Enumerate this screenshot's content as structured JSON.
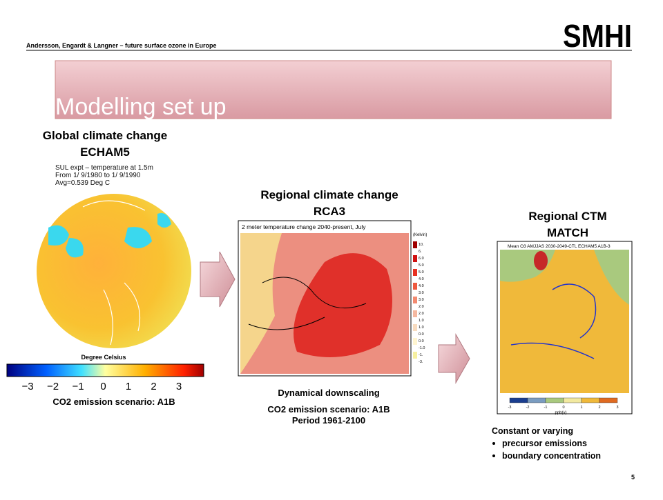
{
  "header": {
    "credit": "Andersson, Engardt & Langner – future surface ozone in Europe",
    "logo": "SMHI",
    "page": "5"
  },
  "title": "Modelling set up",
  "panels": [
    {
      "heading": [
        "Global climate change",
        "ECHAM5"
      ],
      "figure": {
        "caption": [
          "SUL expt – temperature at 1.5m",
          "From 1/ 9/1980 to 1/ 9/1990",
          "Avg=0.539 Deg C"
        ],
        "unit": "Degree Celsius",
        "scale": [
          "−3",
          "−2",
          "−1",
          "0",
          "1",
          "2",
          "3"
        ]
      },
      "notes": [
        "CO2 emission scenario: A1B"
      ]
    },
    {
      "heading": [
        "Regional climate change",
        "RCA3"
      ],
      "figure": {
        "caption": [
          "2 meter temperature change 2040-present, July"
        ],
        "unit": "(Kelvin)",
        "scale": [
          "10.",
          "6.",
          "6.0",
          "5.0",
          "5.0",
          "4.0",
          "4.0",
          "3.0",
          "3.0",
          "2.0",
          "2.0",
          "1.0",
          "1.0",
          "0.0",
          "0.0",
          "-1.0",
          "-1.",
          "-3."
        ]
      },
      "notes": [
        "Dynamical downscaling",
        "CO2 emission scenario: A1B",
        "Period 1961-2100"
      ]
    },
    {
      "heading": [
        "Regional CTM",
        "MATCH"
      ],
      "figure": {
        "caption": [
          "Mean O3 AMJJAS 2030-2049-CTL ECHAM5 A1B-3"
        ],
        "unit": "ppb(v)",
        "scale": [
          "-3",
          "-2",
          "-1",
          "0",
          "1",
          "2",
          "3"
        ]
      },
      "notes": [
        "Constant or varying",
        "precursor emissions",
        "boundary concentration"
      ]
    }
  ]
}
